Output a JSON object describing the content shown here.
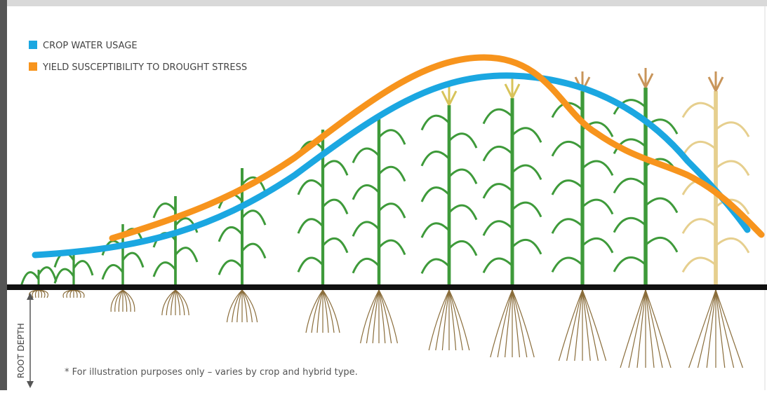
{
  "legend": {
    "items": [
      {
        "name": "CROP WATER USAGE",
        "color": "#1ba7e1"
      },
      {
        "name": "YIELD SUSCEPTIBILITY TO DROUGHT STRESS",
        "color": "#f7941d"
      }
    ]
  },
  "axis_label": "ROOT DEPTH",
  "footnote": "* For illustration purposes only – varies by crop and hybrid type."
}
